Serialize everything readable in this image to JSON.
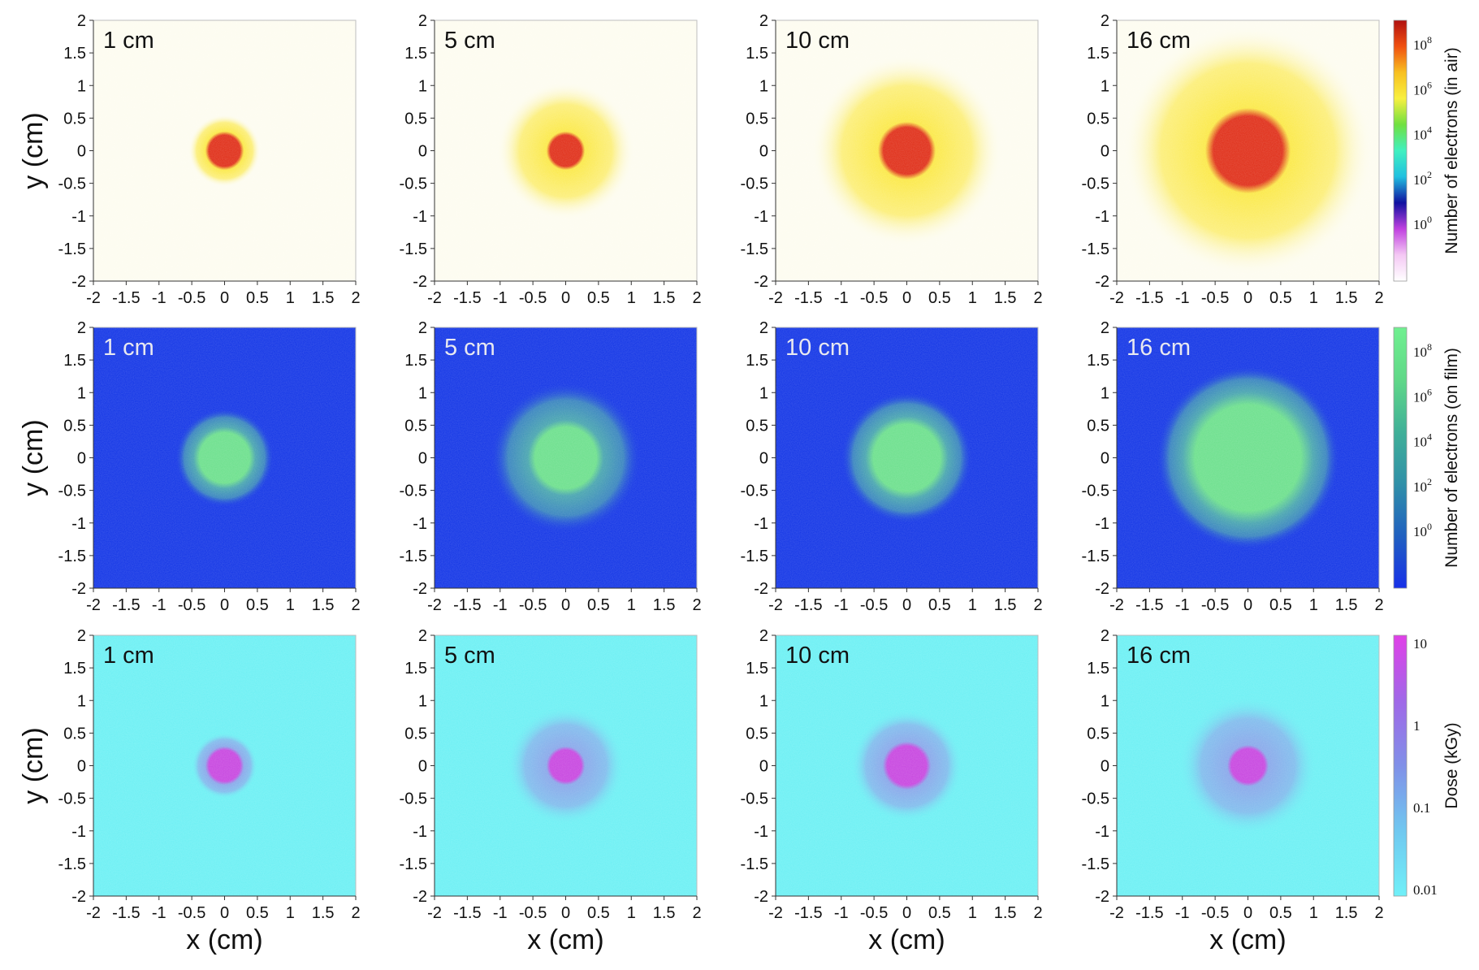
{
  "chart_data": {
    "type": "heatmap",
    "description_rows": [
      "electrons in air",
      "electrons on film",
      "dose"
    ],
    "distances": [
      "1 cm",
      "5 cm",
      "10 cm",
      "16 cm"
    ],
    "x_ticks": [
      "-2",
      "-1.5",
      "-1",
      "-0.5",
      "0",
      "0.5",
      "1",
      "1.5",
      "2"
    ],
    "y_ticks": [
      "2",
      "1.5",
      "1",
      "0.5",
      "0",
      "-0.5",
      "-1",
      "-1.5",
      "-2"
    ],
    "xlim": [
      -2,
      2
    ],
    "ylim": [
      -2,
      2
    ],
    "x_label": "x (cm)",
    "y_label": "y (cm)",
    "rows": [
      {
        "id": "air",
        "colorbar_title": "Number of electrons (in air)",
        "colorbar_ticks": [
          "10^8",
          "10^6",
          "10^4",
          "10^2",
          "10^0"
        ],
        "colorbar_ticks_display": [
          {
            "base": "10",
            "exp": "8"
          },
          {
            "base": "10",
            "exp": "6"
          },
          {
            "base": "10",
            "exp": "4"
          },
          {
            "base": "10",
            "exp": "2"
          },
          {
            "base": "10",
            "exp": "0"
          }
        ],
        "colors": {
          "background": "#fdfcf0",
          "halo": "#fbe94a",
          "spot": "#e0321c",
          "label": "#111111"
        },
        "panels": [
          {
            "label": "1 cm",
            "spot_radius_cm": 0.28,
            "halo_radius_cm": 0.55
          },
          {
            "label": "5 cm",
            "spot_radius_cm": 0.28,
            "halo_radius_cm": 1.05
          },
          {
            "label": "10 cm",
            "spot_radius_cm": 0.42,
            "halo_radius_cm": 1.45
          },
          {
            "label": "16 cm",
            "spot_radius_cm": 0.62,
            "halo_radius_cm": 1.9
          }
        ]
      },
      {
        "id": "film",
        "colorbar_title": "Number of electrons (on film)",
        "colorbar_ticks": [
          "10^8",
          "10^6",
          "10^4",
          "10^2",
          "10^0"
        ],
        "colorbar_ticks_display": [
          {
            "base": "10",
            "exp": "8"
          },
          {
            "base": "10",
            "exp": "6"
          },
          {
            "base": "10",
            "exp": "4"
          },
          {
            "base": "10",
            "exp": "2"
          },
          {
            "base": "10",
            "exp": "0"
          }
        ],
        "colors": {
          "background": "#1638e6",
          "halo": "#4aa6b0",
          "spot": "#6ee08e",
          "label": "#e8e8f0"
        },
        "panels": [
          {
            "label": "1 cm",
            "spot_radius_cm": 0.45,
            "halo_radius_cm": 0.75
          },
          {
            "label": "5 cm",
            "spot_radius_cm": 0.55,
            "halo_radius_cm": 1.15
          },
          {
            "label": "10 cm",
            "spot_radius_cm": 0.6,
            "halo_radius_cm": 1.0
          },
          {
            "label": "16 cm",
            "spot_radius_cm": 0.95,
            "halo_radius_cm": 1.4
          }
        ]
      },
      {
        "id": "dose",
        "colorbar_title": "Dose (kGy)",
        "colorbar_ticks": [
          "10",
          "1",
          "0.1",
          "0.01"
        ],
        "colorbar_ticks_display": [
          {
            "base": "10",
            "exp": ""
          },
          {
            "base": "1",
            "exp": ""
          },
          {
            "base": "0.1",
            "exp": ""
          },
          {
            "base": "0.01",
            "exp": ""
          }
        ],
        "colors": {
          "background": "#6ef0f4",
          "halo": "#8aa8ea",
          "spot": "#c849e0",
          "label": "#111111"
        },
        "panels": [
          {
            "label": "1 cm",
            "spot_radius_cm": 0.28,
            "halo_radius_cm": 0.5
          },
          {
            "label": "5 cm",
            "spot_radius_cm": 0.28,
            "halo_radius_cm": 0.9
          },
          {
            "label": "10 cm",
            "spot_radius_cm": 0.35,
            "halo_radius_cm": 0.85
          },
          {
            "label": "16 cm",
            "spot_radius_cm": 0.3,
            "halo_radius_cm": 1.05
          }
        ]
      }
    ],
    "colormaps": {
      "air": [
        "#ffffff",
        "#f4c8f4",
        "#c040e0",
        "#1010a0",
        "#20c0e0",
        "#40f0c0",
        "#70e040",
        "#f8f040",
        "#f8c020",
        "#f05010",
        "#b01010"
      ],
      "film": [
        "#1830e8",
        "#2060c0",
        "#3090a8",
        "#40b098",
        "#60d888",
        "#70f090"
      ],
      "dose": [
        "#70f0f8",
        "#70c8f0",
        "#8090e8",
        "#a068e8",
        "#e040e8"
      ]
    }
  }
}
